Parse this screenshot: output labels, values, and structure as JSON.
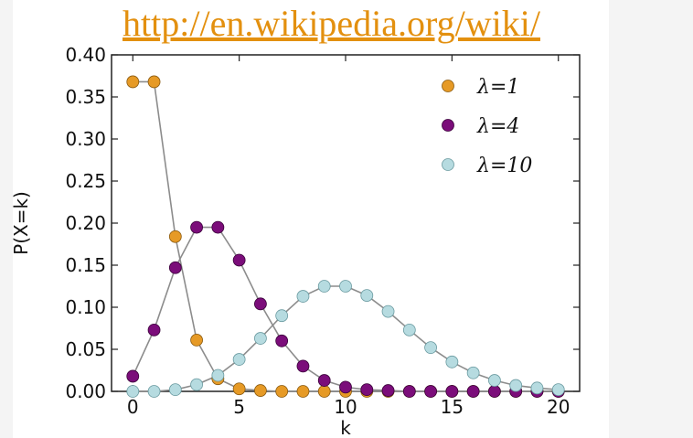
{
  "header": {
    "url_text": "http://en.wikipedia.org/wiki/"
  },
  "colors": {
    "lambda1": "#e69a26",
    "lambda4": "#7b0d7a",
    "lambda10": "#b6dbe0",
    "line": "#8c8c8c",
    "link": "#e3900f"
  },
  "chart_data": {
    "type": "line",
    "title": "",
    "xlabel": "k",
    "ylabel": "P(X=k)",
    "xlim": [
      -1,
      21
    ],
    "ylim": [
      0,
      0.4
    ],
    "xticks": [
      0,
      5,
      10,
      15,
      20
    ],
    "yticks": [
      "0.00",
      "0.05",
      "0.10",
      "0.15",
      "0.20",
      "0.25",
      "0.30",
      "0.35",
      "0.40"
    ],
    "legend_position": "top-right",
    "grid": false,
    "series": [
      {
        "name": "λ=1",
        "x": [
          0,
          1,
          2,
          3,
          4,
          5,
          6,
          7,
          8,
          9,
          10,
          11,
          12,
          13,
          14,
          15,
          16,
          17,
          18,
          19,
          20
        ],
        "values": [
          0.368,
          0.368,
          0.184,
          0.061,
          0.015,
          0.003,
          0.001,
          0,
          0,
          0,
          0,
          0,
          0,
          0,
          0,
          0,
          0,
          0,
          0,
          0,
          0
        ]
      },
      {
        "name": "λ=4",
        "x": [
          0,
          1,
          2,
          3,
          4,
          5,
          6,
          7,
          8,
          9,
          10,
          11,
          12,
          13,
          14,
          15,
          16,
          17,
          18,
          19,
          20
        ],
        "values": [
          0.018,
          0.073,
          0.147,
          0.195,
          0.195,
          0.156,
          0.104,
          0.06,
          0.03,
          0.013,
          0.005,
          0.002,
          0.001,
          0,
          0,
          0,
          0,
          0,
          0,
          0,
          0
        ]
      },
      {
        "name": "λ=10",
        "x": [
          0,
          1,
          2,
          3,
          4,
          5,
          6,
          7,
          8,
          9,
          10,
          11,
          12,
          13,
          14,
          15,
          16,
          17,
          18,
          19,
          20
        ],
        "values": [
          0.0,
          0.0,
          0.002,
          0.008,
          0.019,
          0.038,
          0.063,
          0.09,
          0.113,
          0.125,
          0.125,
          0.114,
          0.095,
          0.073,
          0.052,
          0.035,
          0.022,
          0.013,
          0.007,
          0.004,
          0.002
        ]
      }
    ]
  }
}
